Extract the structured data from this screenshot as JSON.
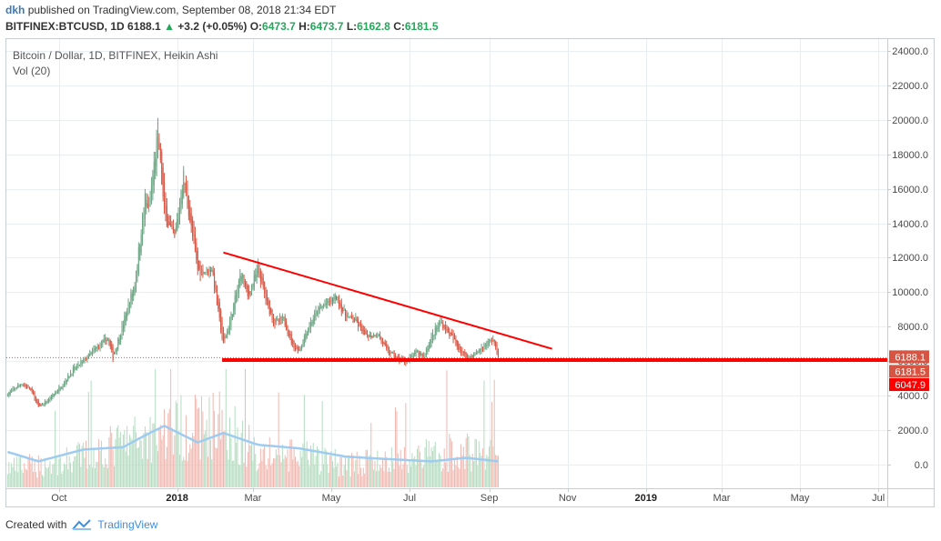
{
  "header": {
    "author": "dkh",
    "published_text": "published on TradingView.com, September 08, 2018 21:34 EDT"
  },
  "symbol_bar": {
    "symbol": "BITFINEX:BTCUSD, 1D",
    "last": "6188.1",
    "change_arrow": "▲",
    "change": "+3.2 (+0.05%)",
    "open_label": "O:",
    "open": "6473.7",
    "high_label": "H:",
    "high": "6473.7",
    "low_label": "L:",
    "low": "6162.8",
    "close_label": "C:",
    "close": "6181.5"
  },
  "legend": {
    "series_title": "Bitcoin / Dollar, 1D, BITFINEX, Heikin Ashi",
    "volume_title": "Vol (20)"
  },
  "footer": {
    "created_with": "Created with",
    "brand": "TradingView"
  },
  "colors": {
    "up": "#6ba583",
    "down": "#d75442",
    "trendline": "#ff0000",
    "volume_up": "#b5dcc0",
    "volume_down": "#f0b7b0",
    "volume_ma": "#9ecbf0",
    "grid": "#e9eef2"
  },
  "chart_data": {
    "type": "candlestick",
    "style": "Heikin Ashi",
    "price_axis": {
      "ticks": [
        0,
        2000,
        4000,
        6000,
        8000,
        10000,
        12000,
        14000,
        16000,
        18000,
        20000,
        22000,
        24000
      ],
      "tick_labels": [
        "0.0",
        "2000.0",
        "4000.0",
        "6000.0",
        "8000.0",
        "10000.0",
        "12000.0",
        "14000.0",
        "16000.0",
        "18000.0",
        "20000.0",
        "22000.0",
        "24000.0"
      ],
      "visible_range": [
        -1400,
        24700
      ],
      "scale": "linear"
    },
    "time_axis": {
      "labels": [
        "Oct",
        "2018",
        "Mar",
        "May",
        "Jul",
        "Sep",
        "Nov",
        "2019",
        "Mar",
        "May",
        "Jul"
      ],
      "bold_labels": [
        "2018",
        "2019"
      ],
      "dates": [
        "2017-10-01",
        "2018-01-01",
        "2018-03-01",
        "2018-05-01",
        "2018-07-01",
        "2018-09-01",
        "2018-11-01",
        "2019-01-01",
        "2019-03-01",
        "2019-05-01",
        "2019-07-01"
      ],
      "visible_range": [
        "2017-08-21",
        "2019-07-08"
      ]
    },
    "price_labels": [
      {
        "value": "6188.1",
        "color": "#d75442"
      },
      {
        "value": "6181.5",
        "color": "#d75442"
      },
      {
        "value": "6047.9",
        "color": "#ff0000"
      }
    ],
    "trendlines": [
      {
        "name": "descending resistance",
        "from": [
          "2018-02-06",
          12300
        ],
        "to": [
          "2018-10-20",
          6700
        ]
      },
      {
        "name": "horizontal support",
        "from": [
          "2018-02-05",
          6047.9
        ],
        "to": [
          "2019-07-08",
          6047.9
        ]
      }
    ],
    "price_anchors": [
      [
        "2017-08-22",
        4100
      ],
      [
        "2017-09-02",
        4700
      ],
      [
        "2017-09-09",
        4300
      ],
      [
        "2017-09-15",
        3300
      ],
      [
        "2017-09-22",
        3700
      ],
      [
        "2017-10-01",
        4400
      ],
      [
        "2017-10-12",
        5500
      ],
      [
        "2017-10-20",
        6000
      ],
      [
        "2017-11-01",
        6900
      ],
      [
        "2017-11-08",
        7300
      ],
      [
        "2017-11-12",
        6200
      ],
      [
        "2017-11-20",
        8200
      ],
      [
        "2017-11-29",
        10500
      ],
      [
        "2017-12-07",
        15500
      ],
      [
        "2017-12-10",
        14800
      ],
      [
        "2017-12-17",
        19300
      ],
      [
        "2017-12-22",
        14500
      ],
      [
        "2017-12-30",
        13100
      ],
      [
        "2018-01-06",
        16800
      ],
      [
        "2018-01-12",
        13700
      ],
      [
        "2018-01-17",
        11300
      ],
      [
        "2018-01-22",
        11200
      ],
      [
        "2018-01-28",
        11400
      ],
      [
        "2018-02-02",
        8800
      ],
      [
        "2018-02-06",
        6900
      ],
      [
        "2018-02-12",
        8600
      ],
      [
        "2018-02-20",
        11200
      ],
      [
        "2018-02-25",
        9700
      ],
      [
        "2018-03-05",
        11400
      ],
      [
        "2018-03-12",
        9300
      ],
      [
        "2018-03-18",
        8200
      ],
      [
        "2018-03-25",
        8400
      ],
      [
        "2018-04-01",
        6900
      ],
      [
        "2018-04-06",
        6600
      ],
      [
        "2018-04-12",
        7800
      ],
      [
        "2018-04-20",
        8900
      ],
      [
        "2018-04-26",
        9300
      ],
      [
        "2018-05-05",
        9700
      ],
      [
        "2018-05-12",
        8600
      ],
      [
        "2018-05-20",
        8300
      ],
      [
        "2018-05-28",
        7400
      ],
      [
        "2018-06-06",
        7600
      ],
      [
        "2018-06-13",
        6600
      ],
      [
        "2018-06-22",
        6100
      ],
      [
        "2018-06-29",
        6000
      ],
      [
        "2018-07-06",
        6500
      ],
      [
        "2018-07-12",
        6300
      ],
      [
        "2018-07-18",
        7400
      ],
      [
        "2018-07-25",
        8300
      ],
      [
        "2018-08-01",
        7600
      ],
      [
        "2018-08-07",
        6900
      ],
      [
        "2018-08-14",
        6200
      ],
      [
        "2018-08-21",
        6400
      ],
      [
        "2018-08-28",
        6900
      ],
      [
        "2018-09-04",
        7300
      ],
      [
        "2018-09-07",
        6400
      ],
      [
        "2018-09-08",
        6188
      ]
    ],
    "volume_anchors": [
      [
        "2017-08-22",
        250
      ],
      [
        "2017-10-01",
        300
      ],
      [
        "2017-11-12",
        520
      ],
      [
        "2017-12-07",
        640
      ],
      [
        "2017-12-22",
        720
      ],
      [
        "2018-01-17",
        780
      ],
      [
        "2018-02-06",
        820
      ],
      [
        "2018-03-05",
        420
      ],
      [
        "2018-04-12",
        380
      ],
      [
        "2018-05-12",
        300
      ],
      [
        "2018-06-13",
        320
      ],
      [
        "2018-06-29",
        380
      ],
      [
        "2018-07-18",
        420
      ],
      [
        "2018-08-14",
        460
      ],
      [
        "2018-09-08",
        400
      ]
    ],
    "volume_ma_anchors": [
      [
        "2017-08-22",
        0.3
      ],
      [
        "2017-09-15",
        0.22
      ],
      [
        "2017-10-20",
        0.32
      ],
      [
        "2017-11-20",
        0.34
      ],
      [
        "2017-12-07",
        0.44
      ],
      [
        "2017-12-22",
        0.52
      ],
      [
        "2018-01-17",
        0.38
      ],
      [
        "2018-02-06",
        0.46
      ],
      [
        "2018-03-05",
        0.36
      ],
      [
        "2018-04-06",
        0.33
      ],
      [
        "2018-05-12",
        0.26
      ],
      [
        "2018-06-13",
        0.24
      ],
      [
        "2018-07-18",
        0.22
      ],
      [
        "2018-08-14",
        0.25
      ],
      [
        "2018-09-08",
        0.22
      ]
    ]
  }
}
